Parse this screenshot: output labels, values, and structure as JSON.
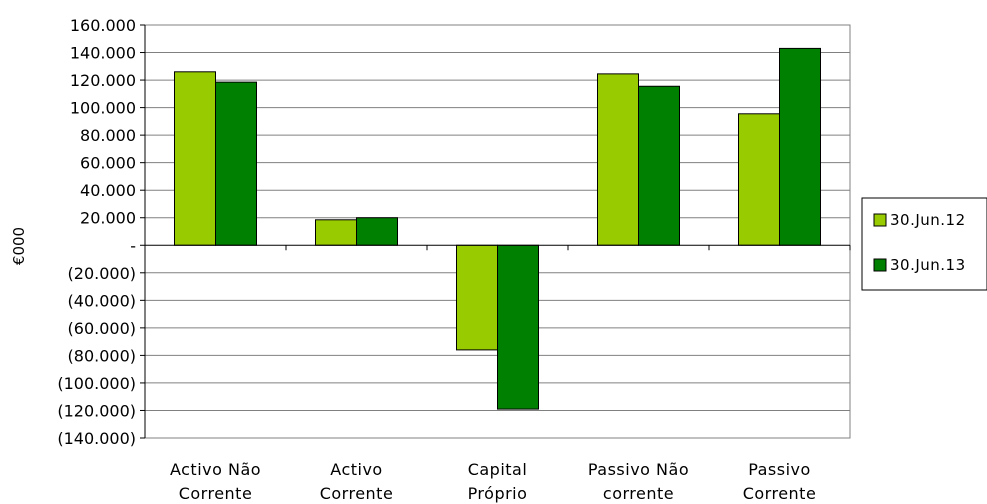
{
  "chart_data": {
    "type": "bar",
    "title": "",
    "ylabel": "€000",
    "xlabel": "",
    "categories": [
      [
        "Activo Não",
        "Corrente"
      ],
      [
        "Activo",
        "Corrente"
      ],
      [
        "Capital",
        "Próprio"
      ],
      [
        "Passivo Não",
        "corrente"
      ],
      [
        "Passivo",
        "Corrente"
      ]
    ],
    "series": [
      {
        "name": "30.Jun.12",
        "color": "#99CC00",
        "values": [
          126000,
          18500,
          -76000,
          124500,
          95500
        ]
      },
      {
        "name": "30.Jun.13",
        "color": "#008000",
        "values": [
          118500,
          20000,
          -119000,
          115500,
          143000
        ]
      }
    ],
    "ylim": [
      -140000,
      160000
    ],
    "yticks": [
      160000,
      140000,
      120000,
      100000,
      80000,
      60000,
      40000,
      20000,
      0,
      -20000,
      -40000,
      -60000,
      -80000,
      -100000,
      -120000,
      -140000
    ],
    "ytick_labels": [
      "160.000",
      "140.000",
      "120.000",
      "100.000",
      "80.000",
      "60.000",
      "40.000",
      "20.000",
      "-",
      "(20.000)",
      "(40.000)",
      "(60.000)",
      "(80.000)",
      "(100.000)",
      "(120.000)",
      "(140.000)"
    ],
    "grid": true,
    "legend": "right"
  }
}
